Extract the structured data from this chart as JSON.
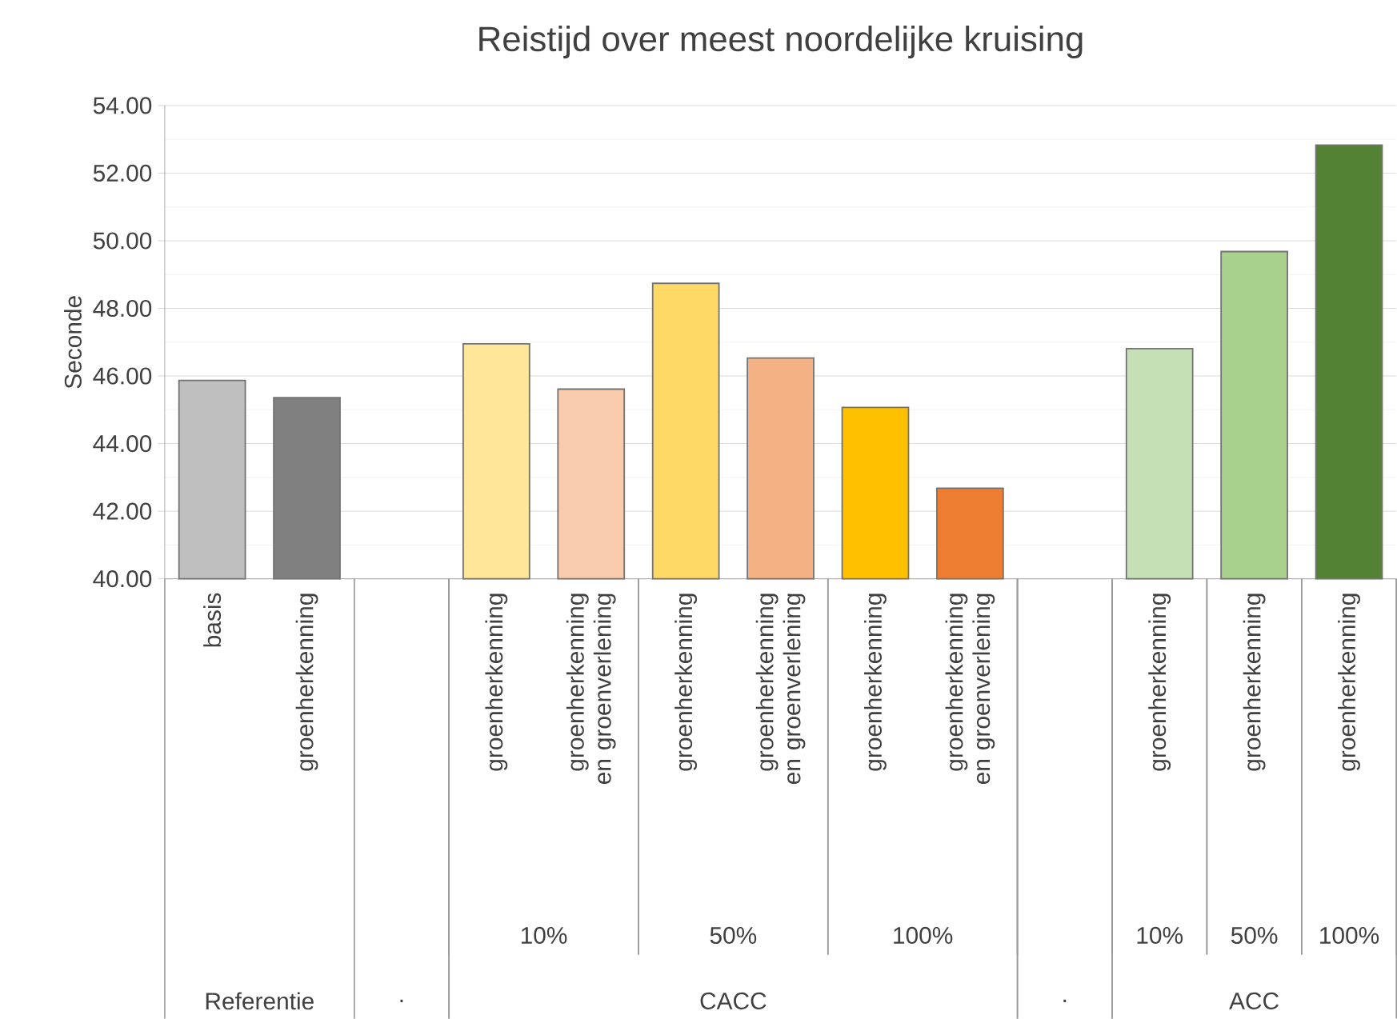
{
  "chart_data": {
    "type": "bar",
    "title": "Reistijd over meest noordelijke kruising",
    "ylabel": "Seconde",
    "categories": [
      "basis",
      "groenherkenning",
      null,
      "groenherkenning",
      "groenherkenning en groenverlening",
      "groenherkenning",
      "groenherkenning en groenverlening",
      "groenherkenning",
      "groenherkenning en groenverlening",
      null,
      "groenherkenning",
      "groenherkenning",
      "groenherkenning"
    ],
    "values": [
      45.87,
      45.36,
      null,
      46.95,
      45.61,
      48.74,
      46.53,
      45.07,
      42.68,
      null,
      46.81,
      49.68,
      52.83
    ],
    "colors": [
      "#bfbfbf",
      "#808080",
      null,
      "#ffe699",
      "#f8cbad",
      "#ffd966",
      "#f4b183",
      "#ffc000",
      "#ed7d31",
      null,
      "#c5e0b4",
      "#a9d18e",
      "#548235"
    ],
    "ylim": [
      40,
      54
    ],
    "yticks": [
      {
        "value": 40,
        "label": "40.00"
      },
      {
        "value": 42,
        "label": "42.00"
      },
      {
        "value": 44,
        "label": "44.00"
      },
      {
        "value": 46,
        "label": "46.00"
      },
      {
        "value": 48,
        "label": "48.00"
      },
      {
        "value": 50,
        "label": "50.00"
      },
      {
        "value": 52,
        "label": "52.00"
      },
      {
        "value": 54,
        "label": "54.00"
      }
    ],
    "grid": "y",
    "annotations": [
      "10%",
      "50%",
      "100%",
      "10%",
      "50%",
      "100%",
      "Referentie",
      ".",
      "CACC",
      ".",
      "ACC"
    ]
  }
}
